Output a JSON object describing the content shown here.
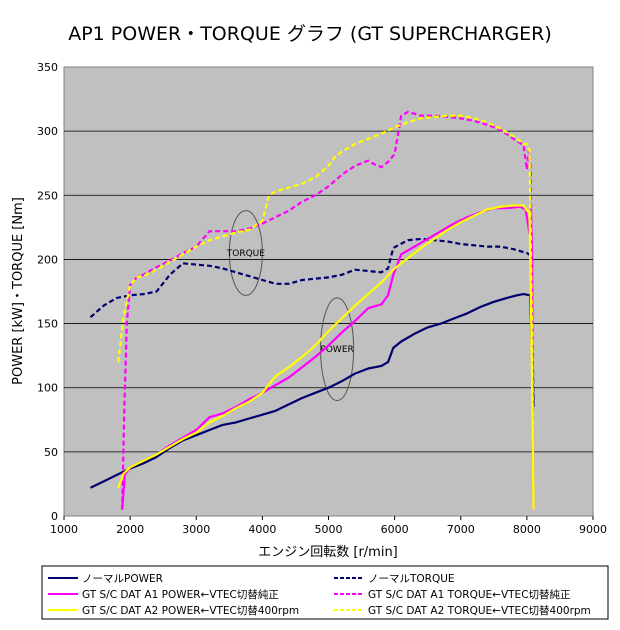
{
  "chart_data": {
    "type": "line",
    "title": "AP1 POWER・TORQUE グラフ (GT SUPERCHARGER)",
    "xlabel": "エンジン回転数 [r/min]",
    "ylabel": "POWER [kW]・TORQUE [Nm]",
    "xlim": [
      1000,
      9000
    ],
    "ylim": [
      0,
      350
    ],
    "xticks": [
      "1000",
      "2000",
      "3000",
      "4000",
      "5000",
      "6000",
      "7000",
      "8000",
      "9000"
    ],
    "yticks": [
      "0",
      "50",
      "100",
      "150",
      "200",
      "250",
      "300",
      "350"
    ],
    "grid": "horizontal",
    "plot_background": "#c0c0c0",
    "legend_position": "bottom",
    "annotations": [
      {
        "label": "TORQUE",
        "x": 3750,
        "y": 205,
        "rx": 250,
        "ry": 33
      },
      {
        "label": "POWER",
        "x": 5130,
        "y": 130,
        "rx": 250,
        "ry": 40
      }
    ],
    "series": [
      {
        "name": "ノーマルPOWER",
        "color": "#00006e",
        "dash": "solid",
        "points": [
          [
            1400,
            22
          ],
          [
            1600,
            27
          ],
          [
            1800,
            32
          ],
          [
            2000,
            37
          ],
          [
            2200,
            41
          ],
          [
            2400,
            46
          ],
          [
            2600,
            53
          ],
          [
            2800,
            59
          ],
          [
            3000,
            63
          ],
          [
            3200,
            67
          ],
          [
            3400,
            71
          ],
          [
            3600,
            73
          ],
          [
            3800,
            76
          ],
          [
            4000,
            79
          ],
          [
            4200,
            82
          ],
          [
            4400,
            87
          ],
          [
            4600,
            92
          ],
          [
            4800,
            96
          ],
          [
            5000,
            100
          ],
          [
            5200,
            105
          ],
          [
            5400,
            111
          ],
          [
            5600,
            115
          ],
          [
            5800,
            117
          ],
          [
            5900,
            120
          ],
          [
            5980,
            131
          ],
          [
            6100,
            136
          ],
          [
            6300,
            142
          ],
          [
            6500,
            147
          ],
          [
            6700,
            150
          ],
          [
            6900,
            154
          ],
          [
            7100,
            158
          ],
          [
            7300,
            163
          ],
          [
            7500,
            167
          ],
          [
            7700,
            170
          ],
          [
            7850,
            172
          ],
          [
            7950,
            173
          ],
          [
            8050,
            172
          ],
          [
            8100,
            85
          ]
        ]
      },
      {
        "name": "ノーマルTORQUE",
        "color": "#00006e",
        "dash": "dash",
        "points": [
          [
            1400,
            155
          ],
          [
            1600,
            164
          ],
          [
            1800,
            170
          ],
          [
            2000,
            172
          ],
          [
            2200,
            173
          ],
          [
            2400,
            175
          ],
          [
            2600,
            188
          ],
          [
            2800,
            197
          ],
          [
            3000,
            196
          ],
          [
            3200,
            195
          ],
          [
            3400,
            193
          ],
          [
            3600,
            190
          ],
          [
            3800,
            187
          ],
          [
            4000,
            184
          ],
          [
            4200,
            181
          ],
          [
            4400,
            181
          ],
          [
            4600,
            184
          ],
          [
            4800,
            185
          ],
          [
            5000,
            186
          ],
          [
            5200,
            188
          ],
          [
            5400,
            192
          ],
          [
            5600,
            191
          ],
          [
            5800,
            190
          ],
          [
            5900,
            193
          ],
          [
            5980,
            209
          ],
          [
            6200,
            215
          ],
          [
            6400,
            216
          ],
          [
            6600,
            215
          ],
          [
            6800,
            214
          ],
          [
            7000,
            212
          ],
          [
            7200,
            211
          ],
          [
            7400,
            210
          ],
          [
            7600,
            210
          ],
          [
            7800,
            208
          ],
          [
            8000,
            205
          ],
          [
            8060,
            203
          ],
          [
            8080,
            150
          ],
          [
            8100,
            90
          ]
        ]
      },
      {
        "name": "GT S/C DAT A1 POWER←VTEC切替純正",
        "color": "#ff00ff",
        "dash": "solid",
        "points": [
          [
            1880,
            5
          ],
          [
            1920,
            32
          ],
          [
            2000,
            38
          ],
          [
            2200,
            43
          ],
          [
            2400,
            48
          ],
          [
            2600,
            55
          ],
          [
            2800,
            61
          ],
          [
            3000,
            67
          ],
          [
            3200,
            77
          ],
          [
            3400,
            80
          ],
          [
            3600,
            85
          ],
          [
            3800,
            91
          ],
          [
            4000,
            96
          ],
          [
            4200,
            102
          ],
          [
            4400,
            108
          ],
          [
            4600,
            116
          ],
          [
            4800,
            124
          ],
          [
            5000,
            133
          ],
          [
            5200,
            143
          ],
          [
            5400,
            152
          ],
          [
            5600,
            162
          ],
          [
            5800,
            165
          ],
          [
            5900,
            172
          ],
          [
            5980,
            188
          ],
          [
            6100,
            204
          ],
          [
            6300,
            210
          ],
          [
            6500,
            216
          ],
          [
            6700,
            222
          ],
          [
            6900,
            228
          ],
          [
            7100,
            233
          ],
          [
            7300,
            237
          ],
          [
            7500,
            240
          ],
          [
            7700,
            240
          ],
          [
            7900,
            241
          ],
          [
            7980,
            239
          ],
          [
            8010,
            230
          ],
          [
            8040,
            220
          ],
          [
            8060,
            240
          ],
          [
            8080,
            200
          ],
          [
            8090,
            50
          ],
          [
            8100,
            5
          ]
        ]
      },
      {
        "name": "GT S/C DAT A1 TORQUE←VTEC切替純正",
        "color": "#ff00ff",
        "dash": "dash",
        "points": [
          [
            1880,
            5
          ],
          [
            1910,
            80
          ],
          [
            1950,
            150
          ],
          [
            2000,
            180
          ],
          [
            2100,
            186
          ],
          [
            2200,
            188
          ],
          [
            2400,
            194
          ],
          [
            2600,
            199
          ],
          [
            2800,
            205
          ],
          [
            3000,
            210
          ],
          [
            3200,
            222
          ],
          [
            3400,
            222
          ],
          [
            3600,
            222
          ],
          [
            3800,
            224
          ],
          [
            4000,
            228
          ],
          [
            4200,
            233
          ],
          [
            4400,
            238
          ],
          [
            4600,
            245
          ],
          [
            4800,
            250
          ],
          [
            5000,
            257
          ],
          [
            5200,
            266
          ],
          [
            5400,
            273
          ],
          [
            5600,
            277
          ],
          [
            5700,
            274
          ],
          [
            5800,
            272
          ],
          [
            5900,
            276
          ],
          [
            6000,
            282
          ],
          [
            6100,
            312
          ],
          [
            6200,
            315
          ],
          [
            6400,
            312
          ],
          [
            6600,
            312
          ],
          [
            6800,
            311
          ],
          [
            7000,
            310
          ],
          [
            7200,
            308
          ],
          [
            7400,
            305
          ],
          [
            7600,
            301
          ],
          [
            7800,
            294
          ],
          [
            7950,
            289
          ],
          [
            8000,
            270
          ],
          [
            8030,
            285
          ],
          [
            8060,
            270
          ],
          [
            8080,
            150
          ],
          [
            8100,
            5
          ]
        ]
      },
      {
        "name": "GT S/C DAT A2 POWER←VTEC切替400rpm",
        "color": "#ffff00",
        "dash": "solid",
        "points": [
          [
            1820,
            22
          ],
          [
            1900,
            33
          ],
          [
            2000,
            38
          ],
          [
            2200,
            43
          ],
          [
            2400,
            48
          ],
          [
            2600,
            54
          ],
          [
            2800,
            60
          ],
          [
            3000,
            65
          ],
          [
            3200,
            73
          ],
          [
            3400,
            78
          ],
          [
            3600,
            84
          ],
          [
            3800,
            89
          ],
          [
            4000,
            96
          ],
          [
            4200,
            109
          ],
          [
            4400,
            116
          ],
          [
            4600,
            124
          ],
          [
            4800,
            133
          ],
          [
            5000,
            144
          ],
          [
            5200,
            154
          ],
          [
            5400,
            164
          ],
          [
            5600,
            173
          ],
          [
            5800,
            182
          ],
          [
            6000,
            193
          ],
          [
            6200,
            201
          ],
          [
            6400,
            209
          ],
          [
            6600,
            216
          ],
          [
            6800,
            223
          ],
          [
            7000,
            229
          ],
          [
            7200,
            234
          ],
          [
            7400,
            239
          ],
          [
            7600,
            241
          ],
          [
            7800,
            242
          ],
          [
            7950,
            242
          ],
          [
            8000,
            238
          ],
          [
            8040,
            238
          ],
          [
            8080,
            100
          ],
          [
            8100,
            5
          ]
        ]
      },
      {
        "name": "GT S/C DAT A2 TORQUE←VTEC切替400rpm",
        "color": "#ffff00",
        "dash": "dash",
        "points": [
          [
            1820,
            120
          ],
          [
            1900,
            155
          ],
          [
            2000,
            180
          ],
          [
            2100,
            186
          ],
          [
            2200,
            187
          ],
          [
            2400,
            192
          ],
          [
            2600,
            198
          ],
          [
            2800,
            204
          ],
          [
            3000,
            210
          ],
          [
            3200,
            215
          ],
          [
            3400,
            218
          ],
          [
            3600,
            221
          ],
          [
            3800,
            223
          ],
          [
            4000,
            230
          ],
          [
            4100,
            250
          ],
          [
            4200,
            253
          ],
          [
            4400,
            256
          ],
          [
            4600,
            259
          ],
          [
            4800,
            264
          ],
          [
            5000,
            273
          ],
          [
            5100,
            280
          ],
          [
            5200,
            284
          ],
          [
            5400,
            290
          ],
          [
            5600,
            294
          ],
          [
            5800,
            298
          ],
          [
            6000,
            303
          ],
          [
            6200,
            307
          ],
          [
            6400,
            310
          ],
          [
            6600,
            311
          ],
          [
            6800,
            312
          ],
          [
            7000,
            312
          ],
          [
            7200,
            310
          ],
          [
            7400,
            307
          ],
          [
            7600,
            302
          ],
          [
            7800,
            296
          ],
          [
            7950,
            290
          ],
          [
            8000,
            290
          ],
          [
            8040,
            285
          ],
          [
            8080,
            140
          ],
          [
            8100,
            5
          ]
        ]
      }
    ]
  }
}
